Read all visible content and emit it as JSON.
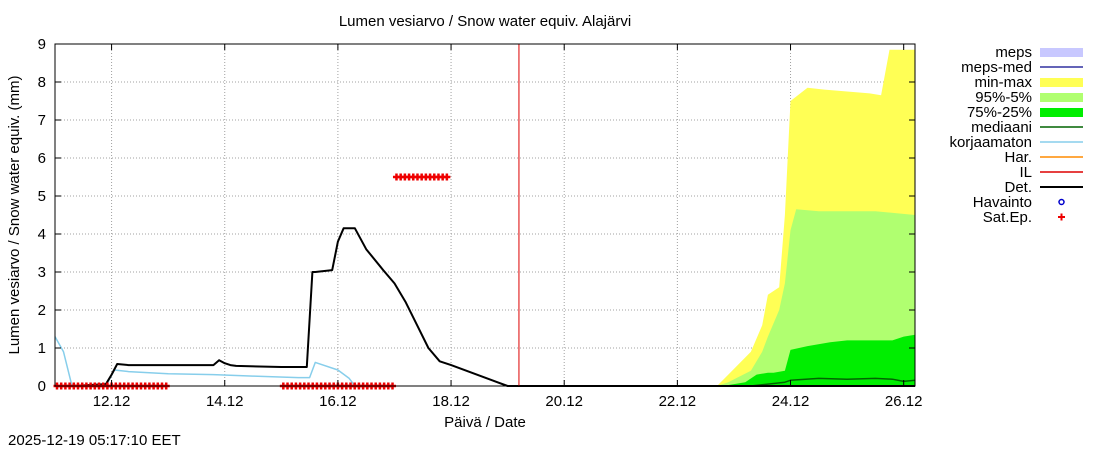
{
  "chart_data": {
    "type": "area",
    "title": "Lumen vesiarvo / Snow water equiv.  Alajärvi",
    "xlabel": "Päivä / Date",
    "ylabel": "Lumen vesiarvo / Snow water equiv. (mm)",
    "timestamp": "2025-12-19 05:17:10 EET",
    "x_unit": "days since 2025-12-11 00:00",
    "xlim": [
      0,
      15.2
    ],
    "ylim": [
      0,
      9
    ],
    "grid": true,
    "legend_position": "right",
    "x_ticks": [
      {
        "x": 1.0,
        "label": "12.12"
      },
      {
        "x": 3.0,
        "label": "14.12"
      },
      {
        "x": 5.0,
        "label": "16.12"
      },
      {
        "x": 7.0,
        "label": "18.12"
      },
      {
        "x": 9.0,
        "label": "20.12"
      },
      {
        "x": 11.0,
        "label": "22.12"
      },
      {
        "x": 13.0,
        "label": "24.12"
      },
      {
        "x": 15.0,
        "label": "26.12"
      }
    ],
    "y_ticks": [
      {
        "y": 0,
        "label": "0"
      },
      {
        "y": 1,
        "label": "1"
      },
      {
        "y": 2,
        "label": "2"
      },
      {
        "y": 3,
        "label": "3"
      },
      {
        "y": 4,
        "label": "4"
      },
      {
        "y": 5,
        "label": "5"
      },
      {
        "y": 6,
        "label": "6"
      },
      {
        "y": 7,
        "label": "7"
      },
      {
        "y": 8,
        "label": "8"
      },
      {
        "y": 9,
        "label": "9"
      }
    ],
    "now_marker_x": 8.2,
    "legend": [
      {
        "label": "meps",
        "style": "box",
        "color": "#c8c8ff"
      },
      {
        "label": "meps-med",
        "style": "line",
        "color": "#3030a0"
      },
      {
        "label": "min-max",
        "style": "box",
        "color": "#ffff55"
      },
      {
        "label": "95%-5%",
        "style": "box",
        "color": "#b0ff70"
      },
      {
        "label": "75%-25%",
        "style": "box",
        "color": "#00ee00"
      },
      {
        "label": "mediaani",
        "style": "line",
        "color": "#006400"
      },
      {
        "label": "korjaamaton",
        "style": "line",
        "color": "#87ceeb"
      },
      {
        "label": "Har.",
        "style": "line",
        "color": "#ff8c00"
      },
      {
        "label": "IL",
        "style": "line",
        "color": "#dd0000"
      },
      {
        "label": "Det.",
        "style": "line",
        "color": "#000000"
      },
      {
        "label": "Havainto",
        "style": "circle",
        "color": "#0000cc"
      },
      {
        "label": "Sat.Ep.",
        "style": "plus",
        "color": "#ee0000"
      }
    ],
    "series": [
      {
        "name": "min-max",
        "kind": "band",
        "color": "#ffff55",
        "x": [
          11.7,
          11.9,
          12.3,
          12.5,
          12.6,
          12.8,
          12.9,
          13.0,
          13.3,
          13.6,
          14.0,
          14.4,
          14.6,
          14.75,
          14.9,
          15.2
        ],
        "upper": [
          0.0,
          0.3,
          0.9,
          1.6,
          2.4,
          2.6,
          4.5,
          7.5,
          7.85,
          7.8,
          7.75,
          7.7,
          7.65,
          8.85,
          8.85,
          8.85
        ],
        "lower": [
          0.0,
          0.0,
          0.0,
          0.0,
          0.0,
          0.0,
          0.0,
          0.0,
          0.0,
          0.0,
          0.0,
          0.0,
          0.0,
          0.0,
          0.0,
          0.0
        ]
      },
      {
        "name": "95%-5%",
        "kind": "band",
        "color": "#b0ff70",
        "x": [
          11.7,
          11.9,
          12.3,
          12.5,
          12.6,
          12.8,
          12.9,
          13.0,
          13.1,
          13.5,
          14.0,
          14.5,
          15.2
        ],
        "upper": [
          0.0,
          0.1,
          0.4,
          0.9,
          1.3,
          2.0,
          2.7,
          4.1,
          4.65,
          4.6,
          4.6,
          4.6,
          4.5
        ],
        "lower": [
          0.0,
          0.0,
          0.0,
          0.0,
          0.0,
          0.0,
          0.0,
          0.0,
          0.0,
          0.0,
          0.0,
          0.0,
          0.0
        ]
      },
      {
        "name": "75%-25%",
        "kind": "band",
        "color": "#00ee00",
        "x": [
          11.8,
          12.2,
          12.4,
          12.6,
          12.7,
          12.9,
          13.0,
          13.3,
          13.7,
          14.0,
          14.4,
          14.8,
          15.0,
          15.2
        ],
        "upper": [
          0.0,
          0.1,
          0.3,
          0.35,
          0.35,
          0.4,
          0.95,
          1.05,
          1.15,
          1.2,
          1.2,
          1.2,
          1.3,
          1.35
        ],
        "lower": [
          0.0,
          0.0,
          0.0,
          0.0,
          0.0,
          0.0,
          0.0,
          0.0,
          0.0,
          0.0,
          0.0,
          0.0,
          0.0,
          0.0
        ]
      },
      {
        "name": "korjaamaton",
        "kind": "line",
        "color": "#87ceeb",
        "x": [
          0.0,
          0.15,
          0.3,
          0.9,
          1.05,
          1.3,
          2.0,
          2.8,
          3.5,
          4.3,
          4.5,
          4.6,
          5.0,
          5.2,
          5.3,
          5.4
        ],
        "y": [
          1.3,
          0.9,
          0.0,
          0.0,
          0.42,
          0.38,
          0.32,
          0.3,
          0.26,
          0.22,
          0.22,
          0.62,
          0.42,
          0.2,
          0.0,
          0.0
        ]
      },
      {
        "name": "mediaani",
        "kind": "line",
        "color": "#006400",
        "x": [
          11.7,
          12.3,
          12.6,
          12.9,
          13.0,
          13.5,
          14.0,
          14.5,
          14.8,
          15.0,
          15.2
        ],
        "y": [
          0.0,
          0.0,
          0.05,
          0.1,
          0.15,
          0.2,
          0.18,
          0.2,
          0.18,
          0.12,
          0.15
        ]
      },
      {
        "name": "Det.",
        "kind": "line",
        "color": "#000000",
        "x": [
          0.0,
          0.3,
          0.9,
          1.0,
          1.1,
          1.3,
          2.0,
          2.8,
          2.9,
          3.0,
          3.1,
          3.2,
          4.0,
          4.45,
          4.55,
          4.6,
          4.9,
          5.0,
          5.1,
          5.3,
          5.5,
          5.8,
          6.0,
          6.2,
          6.4,
          6.6,
          6.8,
          7.0,
          8.0,
          15.2
        ],
        "y": [
          0.0,
          0.0,
          0.05,
          0.3,
          0.58,
          0.55,
          0.55,
          0.55,
          0.68,
          0.6,
          0.55,
          0.53,
          0.5,
          0.5,
          3.0,
          3.0,
          3.05,
          3.8,
          4.15,
          4.15,
          3.6,
          3.05,
          2.7,
          2.2,
          1.6,
          1.0,
          0.65,
          0.55,
          0.0,
          0.0
        ]
      },
      {
        "name": "Sat.Ep.",
        "kind": "markers",
        "color": "#ee0000",
        "segments": [
          {
            "x_start": 0.0,
            "x_end": 2.0,
            "y": 0.0
          },
          {
            "x_start": 4.0,
            "x_end": 6.0,
            "y": 0.0
          },
          {
            "x_start": 6.0,
            "x_end": 7.0,
            "y": 5.5
          }
        ]
      }
    ]
  }
}
